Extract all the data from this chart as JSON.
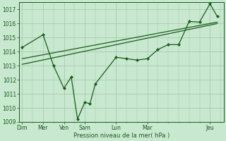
{
  "background_color": "#c8e8d0",
  "grid_color": "#a0c8a8",
  "line_color": "#1a5c1a",
  "ylabel": "Pression niveau de la mer( hPa )",
  "ylim": [
    1009,
    1017.5
  ],
  "yticks": [
    1009,
    1010,
    1011,
    1012,
    1013,
    1014,
    1015,
    1016,
    1017
  ],
  "x_tick_positions": [
    0,
    2,
    4,
    6,
    9,
    12,
    18
  ],
  "x_tick_names": [
    "Dim",
    "Mer",
    "Ven",
    "Sam",
    "Lun",
    "Mar",
    "Jeu"
  ],
  "xlim": [
    -0.3,
    19.3
  ],
  "series1_x": [
    0,
    2,
    3,
    4,
    4.7,
    5.3,
    6.0,
    6.5,
    7.0,
    9,
    10,
    11,
    12,
    13,
    14,
    15,
    16,
    17,
    18,
    18.7
  ],
  "series1_y": [
    1014.3,
    1015.2,
    1013.0,
    1011.4,
    1012.2,
    1009.2,
    1010.4,
    1010.3,
    1011.7,
    1013.6,
    1013.5,
    1013.4,
    1013.5,
    1014.15,
    1014.5,
    1014.5,
    1016.15,
    1016.1,
    1017.4,
    1016.5
  ],
  "series2_x": [
    0,
    18.7
  ],
  "series2_y": [
    1013.1,
    1016.0
  ],
  "series3_x": [
    0,
    18.7
  ],
  "series3_y": [
    1013.5,
    1016.1
  ]
}
